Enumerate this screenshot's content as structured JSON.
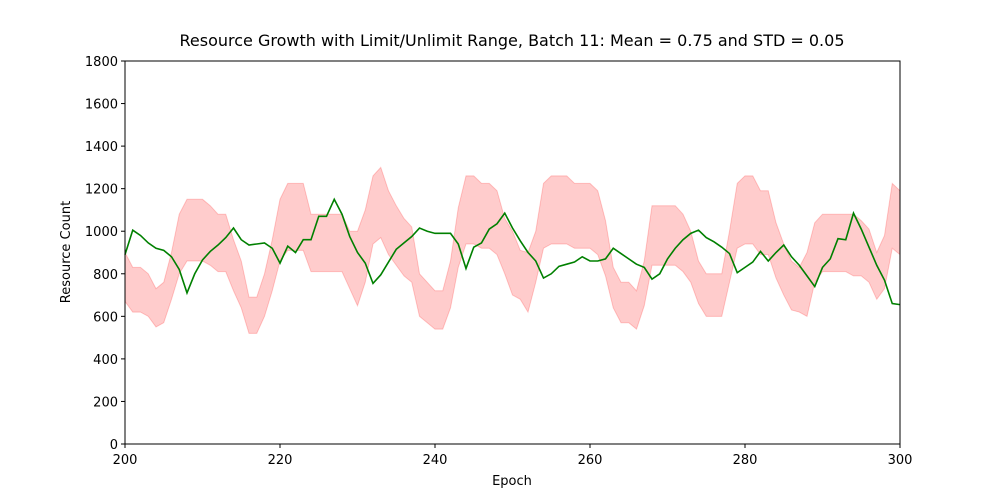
{
  "chart_data": {
    "type": "line",
    "title": "Resource Growth with Limit/Unlimit Range, Batch 11: Mean = 0.75 and STD = 0.05",
    "xlabel": "Epoch",
    "ylabel": "Resource Count",
    "xlim": [
      200,
      300
    ],
    "ylim": [
      0,
      1800
    ],
    "xticks": [
      200,
      220,
      240,
      260,
      280,
      300
    ],
    "yticks": [
      0,
      200,
      400,
      600,
      800,
      1000,
      1200,
      1400,
      1600,
      1800
    ],
    "x": [
      200,
      201,
      202,
      203,
      204,
      205,
      206,
      207,
      208,
      209,
      210,
      211,
      212,
      213,
      214,
      215,
      216,
      217,
      218,
      219,
      220,
      221,
      222,
      223,
      224,
      225,
      226,
      227,
      228,
      229,
      230,
      231,
      232,
      233,
      234,
      235,
      236,
      237,
      238,
      239,
      240,
      241,
      242,
      243,
      244,
      245,
      246,
      247,
      248,
      249,
      250,
      251,
      252,
      253,
      254,
      255,
      256,
      257,
      258,
      259,
      260,
      261,
      262,
      263,
      264,
      265,
      266,
      267,
      268,
      269,
      270,
      271,
      272,
      273,
      274,
      275,
      276,
      277,
      278,
      279,
      280,
      281,
      282,
      283,
      284,
      285,
      286,
      287,
      288,
      289,
      290,
      291,
      292,
      293,
      294,
      295,
      296,
      297,
      298,
      299,
      300
    ],
    "series": [
      {
        "color": "#008000",
        "values": [
          890,
          1005,
          980,
          945,
          920,
          910,
          880,
          820,
          710,
          800,
          865,
          905,
          935,
          970,
          1015,
          960,
          935,
          940,
          945,
          920,
          850,
          930,
          900,
          960,
          960,
          1070,
          1070,
          1150,
          1080,
          975,
          900,
          850,
          755,
          795,
          855,
          915,
          945,
          975,
          1015,
          1000,
          990,
          990,
          990,
          940,
          825,
          925,
          945,
          1010,
          1035,
          1085,
          1015,
          955,
          900,
          860,
          780,
          800,
          835,
          845,
          855,
          880,
          860,
          860,
          870,
          920,
          895,
          870,
          845,
          830,
          775,
          800,
          870,
          920,
          960,
          990,
          1005,
          970,
          950,
          925,
          895,
          805,
          830,
          855,
          905,
          860,
          900,
          935,
          880,
          840,
          790,
          740,
          830,
          870,
          965,
          960,
          1085,
          1010,
          925,
          840,
          770,
          660,
          655
        ]
      }
    ],
    "band": {
      "color": "#ff0000",
      "upper": [
        900,
        830,
        830,
        800,
        730,
        760,
        900,
        1080,
        1150,
        1150,
        1150,
        1120,
        1080,
        1080,
        960,
        860,
        690,
        690,
        800,
        960,
        1150,
        1225,
        1225,
        1225,
        1080,
        1080,
        1080,
        1080,
        1080,
        1000,
        1000,
        1100,
        1260,
        1300,
        1190,
        1120,
        1060,
        1020,
        800,
        760,
        720,
        720,
        860,
        1110,
        1260,
        1260,
        1225,
        1225,
        1190,
        1060,
        1000,
        910,
        900,
        1000,
        1225,
        1260,
        1260,
        1260,
        1225,
        1225,
        1225,
        1190,
        1050,
        830,
        760,
        760,
        720,
        860,
        1120,
        1120,
        1120,
        1120,
        1080,
        1000,
        860,
        800,
        800,
        800,
        1000,
        1225,
        1260,
        1260,
        1190,
        1190,
        1040,
        940,
        860,
        830,
        900,
        1040,
        1080,
        1080,
        1080,
        1080,
        1080,
        1050,
        1010,
        900,
        980,
        1225,
        1190
      ],
      "lower": [
        670,
        620,
        620,
        600,
        550,
        570,
        680,
        800,
        860,
        860,
        860,
        840,
        810,
        810,
        720,
        640,
        520,
        520,
        600,
        720,
        860,
        910,
        910,
        910,
        810,
        810,
        810,
        810,
        810,
        730,
        650,
        760,
        940,
        970,
        890,
        840,
        790,
        760,
        600,
        570,
        540,
        540,
        640,
        830,
        940,
        940,
        920,
        920,
        890,
        800,
        700,
        680,
        620,
        760,
        920,
        940,
        940,
        940,
        920,
        920,
        920,
        890,
        790,
        640,
        570,
        570,
        540,
        650,
        840,
        840,
        840,
        840,
        810,
        760,
        660,
        600,
        600,
        600,
        760,
        920,
        940,
        940,
        890,
        890,
        780,
        700,
        630,
        620,
        600,
        760,
        810,
        810,
        810,
        810,
        790,
        790,
        760,
        680,
        730,
        920,
        890
      ]
    }
  }
}
